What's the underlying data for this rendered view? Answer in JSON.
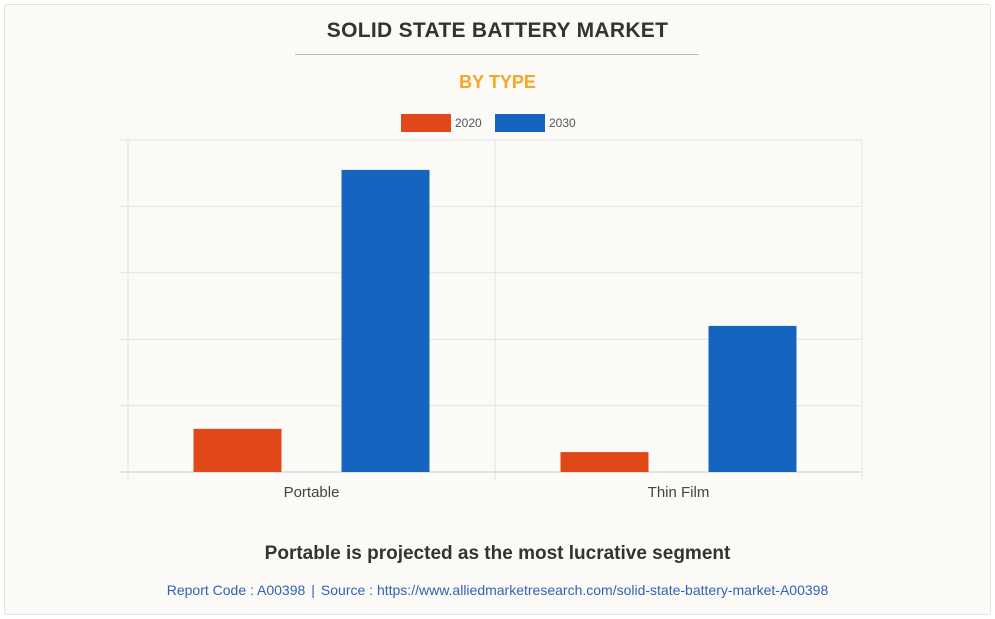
{
  "header": {
    "title": "SOLID STATE BATTERY MARKET",
    "subtitle": "BY TYPE"
  },
  "colors": {
    "series_2020": "#e0481a",
    "series_2030": "#1565c0",
    "subtitle": "#f5a623",
    "title": "#333333",
    "source": "#2f63b5"
  },
  "chart_data": {
    "type": "bar",
    "categories": [
      "Portable",
      "Thin Film"
    ],
    "series": [
      {
        "name": "2020",
        "values": [
          13,
          6
        ]
      },
      {
        "name": "2030",
        "values": [
          91,
          44
        ]
      }
    ],
    "ylim": [
      0,
      100
    ],
    "grid": true,
    "legend": "top-center",
    "xlabel": "",
    "ylabel": ""
  },
  "footer": {
    "note": "Portable is projected as the most lucrative segment",
    "report_code": "Report Code : A00398",
    "separator": "|",
    "source": "Source : https://www.alliedmarketresearch.com/solid-state-battery-market-A00398"
  }
}
